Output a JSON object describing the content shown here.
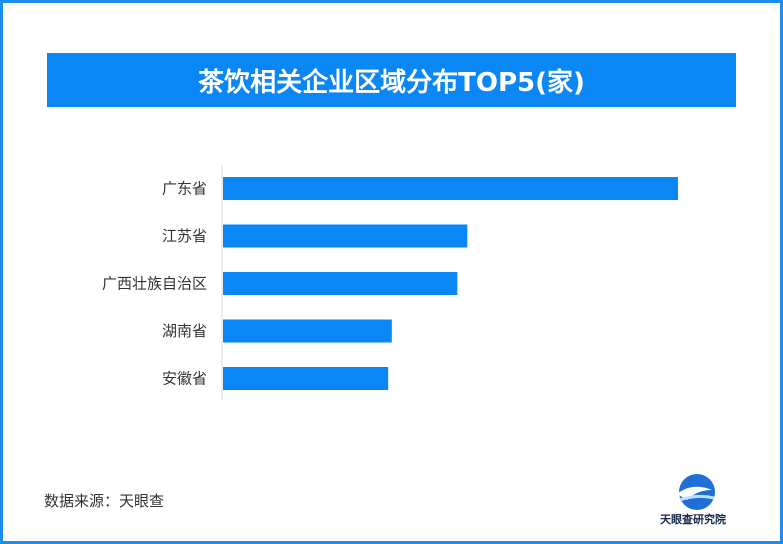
{
  "chart_data": {
    "type": "bar",
    "orientation": "horizontal",
    "title": "茶饮相关企业区域分布TOP5(家)",
    "categories": [
      "广东省",
      "江苏省",
      "广西壮族自治区",
      "湖南省",
      "安徽省"
    ],
    "values": [
      1000,
      537,
      515,
      371,
      363
    ],
    "xlim": [
      0,
      1000
    ],
    "grid": false,
    "legend": "none",
    "bar_color": "#0a86f5"
  },
  "source": "数据来源：天眼查",
  "logo": {
    "icon": "tianyancha-wave-logo-icon",
    "text": "天眼查研究院"
  }
}
